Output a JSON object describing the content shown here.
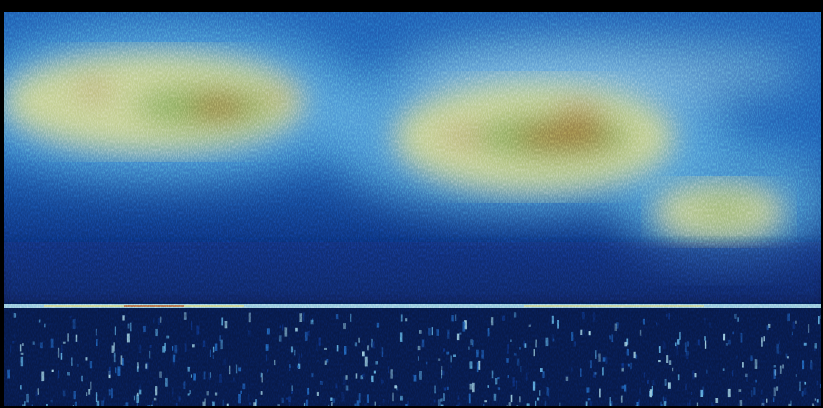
{
  "image": {
    "kind": "false-color intensity scan",
    "colors": {
      "background": "#000000",
      "deep_navy": "#071a4a",
      "navy": "#0c2f78",
      "blue": "#1f5fb3",
      "light_blue": "#5aa6dc",
      "cyan": "#9fd3e6",
      "yellow_green": "#d9d98a",
      "green": "#6fa04a",
      "red_brown": "#a3351a"
    },
    "features": [
      "upper-bright-band",
      "left-yellow-cloud",
      "center-yellow-cloud",
      "right-yellow-cloud",
      "lower-dark-blue-band",
      "horizontal-bright-line",
      "bottom-speckled-zone"
    ]
  }
}
